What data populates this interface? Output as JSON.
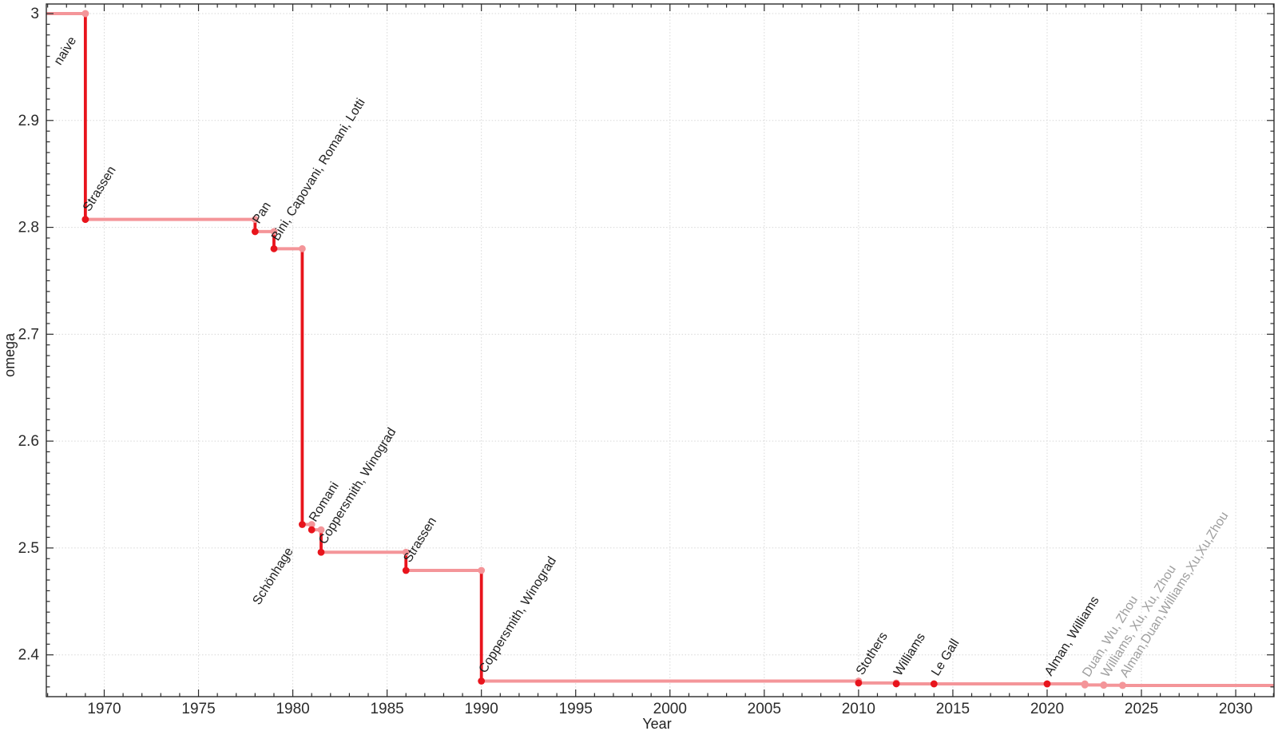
{
  "chart_data": {
    "type": "line",
    "subtype": "step-post",
    "title": "",
    "xlabel": "Year",
    "ylabel": "omega",
    "legend": "none",
    "grid": "dotted-major",
    "x_range": [
      1966.93,
      2032.03
    ],
    "y_range": [
      2.3609,
      3.00897
    ],
    "x_ticks": [
      1970,
      1975,
      1980,
      1985,
      1990,
      1995,
      2000,
      2005,
      2010,
      2015,
      2020,
      2025,
      2030
    ],
    "x_minor_step": 1,
    "y_ticks": [
      {
        "value": 3.0,
        "label": "3"
      },
      {
        "value": 2.9,
        "label": "2.9"
      },
      {
        "value": 2.8,
        "label": "2.8"
      },
      {
        "value": 2.7,
        "label": "2.7"
      },
      {
        "value": 2.6,
        "label": "2.6"
      },
      {
        "value": 2.5,
        "label": "2.5"
      },
      {
        "value": 2.4,
        "label": "2.4"
      }
    ],
    "y_minor_step": 0.01,
    "colors": {
      "line_dark": "#e8141c",
      "line_light": "#f49599",
      "label_dark": "#1f1f1f",
      "label_gray": "#9e9e9e",
      "axis": "#2b2b2b",
      "grid": "#d7d7d7",
      "background": "#ffffff"
    },
    "points": [
      {
        "label": "naive",
        "year": 1969,
        "omega": 3.0,
        "marker": "light",
        "label_color": "dark",
        "label_side": "below"
      },
      {
        "label": "Strassen",
        "year": 1969,
        "omega": 2.8074,
        "marker": "dark",
        "label_color": "dark",
        "label_side": "above"
      },
      {
        "label": "Pan",
        "year": 1978,
        "omega": 2.796,
        "marker": "dark",
        "label_color": "dark",
        "label_side": "above"
      },
      {
        "label": "Bini, Capovani, Romani, Lotti",
        "year": 1979,
        "omega": 2.78,
        "marker": "dark",
        "label_color": "dark",
        "label_side": "above"
      },
      {
        "label": "Schönhage",
        "year": 1980.5,
        "omega": 2.522,
        "marker": "dark",
        "label_color": "dark",
        "label_side": "below"
      },
      {
        "label": "Romani",
        "year": 1981,
        "omega": 2.517,
        "marker": "dark",
        "label_color": "dark",
        "label_side": "above"
      },
      {
        "label": "Coppersmith, Winograd",
        "year": 1981.5,
        "omega": 2.496,
        "marker": "dark",
        "label_color": "dark",
        "label_side": "above"
      },
      {
        "label": "Strassen",
        "year": 1986,
        "omega": 2.479,
        "marker": "dark",
        "label_color": "dark",
        "label_side": "above"
      },
      {
        "label": "Coppersmith, Winograd",
        "year": 1990,
        "omega": 2.3755,
        "marker": "dark",
        "label_color": "dark",
        "label_side": "above"
      },
      {
        "label": "Stothers",
        "year": 2010,
        "omega": 2.3737,
        "marker": "dark",
        "label_color": "dark",
        "label_side": "above"
      },
      {
        "label": "Williams",
        "year": 2012,
        "omega": 2.3729,
        "marker": "dark",
        "label_color": "dark",
        "label_side": "above"
      },
      {
        "label": "Le Gall",
        "year": 2014,
        "omega": 2.3728639,
        "marker": "dark",
        "label_color": "dark",
        "label_side": "above"
      },
      {
        "label": "Alman, Williams",
        "year": 2020,
        "omega": 2.3728596,
        "marker": "dark",
        "label_color": "dark",
        "label_side": "above"
      },
      {
        "label": "Duan, Wu, Zhou",
        "year": 2022,
        "omega": 2.371866,
        "marker": "light",
        "label_color": "gray",
        "label_side": "above"
      },
      {
        "label": "Williams, Xu, Xu, Zhou",
        "year": 2023,
        "omega": 2.371552,
        "marker": "light",
        "label_color": "gray",
        "label_side": "above"
      },
      {
        "label": "Alman,Duan,Williams,Xu,Xu,Zhou",
        "year": 2024,
        "omega": 2.371339,
        "marker": "light",
        "label_color": "gray",
        "label_side": "above"
      }
    ],
    "annotation_rotation_deg": -58
  }
}
